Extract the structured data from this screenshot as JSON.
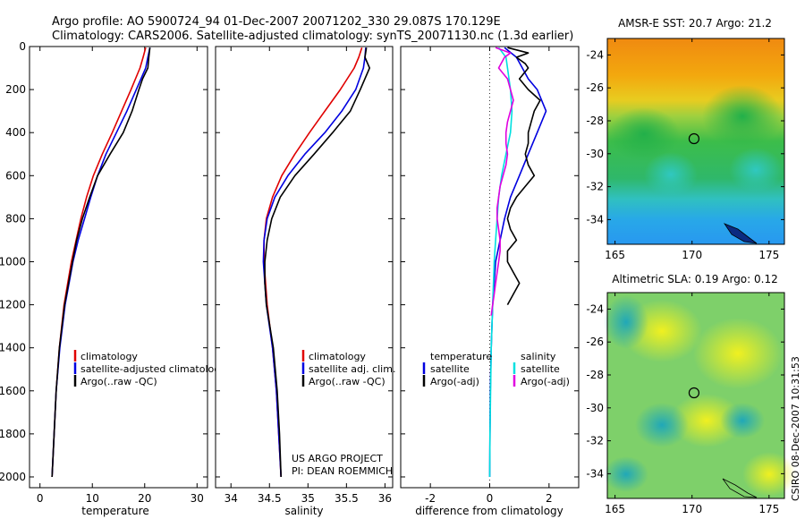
{
  "header": {
    "line1": "Argo profile: AO 5900724_94 01-Dec-2007 20071202_330 29.087S 170.129E",
    "line2": "Climatology: CARS2006. Satellite-adjusted climatology: synTS_20071130.nc (1.3d earlier)"
  },
  "side_label": "CSIRO 08-Dec-2007 10:31:53",
  "credit": {
    "line1": "US ARGO PROJECT",
    "line2": "PI: DEAN ROEMMICH"
  },
  "colors": {
    "climatology": "#e00000",
    "satellite": "#0000e0",
    "argo": "#000000",
    "satellite_salinity": "#00e0e0",
    "argo_salinity": "#e000e0"
  },
  "chart_data": [
    {
      "type": "line",
      "xlabel": "temperature",
      "ylabel": "",
      "xlim": [
        -2,
        32
      ],
      "ylim": [
        2050,
        0
      ],
      "xticks": [
        0,
        10,
        20,
        30
      ],
      "yticks": [
        0,
        200,
        400,
        600,
        800,
        1000,
        1200,
        1400,
        1600,
        1800,
        2000
      ],
      "legend": [
        "climatology",
        "satellite-adjusted climatology",
        "Argo(..raw -QC)"
      ],
      "series": [
        {
          "name": "climatology",
          "color": "#e00000",
          "depth": [
            5,
            50,
            100,
            200,
            300,
            400,
            500,
            600,
            700,
            800,
            900,
            1000,
            1200,
            1400,
            1600,
            1800,
            2000
          ],
          "values": [
            20.2,
            19.7,
            19.1,
            17.4,
            15.6,
            13.8,
            11.9,
            10.2,
            8.9,
            7.8,
            6.9,
            6.0,
            4.6,
            3.7,
            3.1,
            2.7,
            2.3
          ]
        },
        {
          "name": "satellite-adjusted climatology",
          "color": "#0000e0",
          "depth": [
            5,
            50,
            100,
            200,
            300,
            400,
            500,
            600,
            700,
            800,
            900,
            1000,
            1200,
            1400,
            1600,
            1800,
            2000
          ],
          "values": [
            21.0,
            20.6,
            20.2,
            18.4,
            16.6,
            14.6,
            12.6,
            11.0,
            9.7,
            8.5,
            7.3,
            6.3,
            4.8,
            3.8,
            3.1,
            2.7,
            2.3
          ]
        },
        {
          "name": "Argo(..raw -QC)",
          "color": "#000000",
          "depth": [
            5,
            50,
            100,
            150,
            200,
            300,
            400,
            500,
            600,
            700,
            800,
            900,
            1000,
            1200,
            1400,
            1600,
            1800,
            2000
          ],
          "values": [
            21.0,
            20.8,
            20.6,
            19.6,
            18.9,
            17.6,
            15.9,
            13.4,
            11.0,
            9.5,
            8.1,
            7.0,
            6.2,
            4.7,
            3.7,
            3.1,
            2.7,
            2.3
          ]
        }
      ]
    },
    {
      "type": "line",
      "xlabel": "salinity",
      "ylabel": "",
      "xlim": [
        33.8,
        36.1
      ],
      "ylim": [
        2050,
        0
      ],
      "xticks": [
        34,
        34.5,
        35,
        35.5,
        36
      ],
      "yticks": [
        0,
        200,
        400,
        600,
        800,
        1000,
        1200,
        1400,
        1600,
        1800,
        2000
      ],
      "legend": [
        "climatology",
        "satellite adj. clim.",
        "Argo(..raw -QC)"
      ],
      "series": [
        {
          "name": "climatology",
          "color": "#e00000",
          "depth": [
            5,
            50,
            100,
            200,
            300,
            400,
            500,
            600,
            700,
            800,
            900,
            1000,
            1200,
            1400,
            1600,
            1800,
            2000
          ],
          "values": [
            35.7,
            35.66,
            35.6,
            35.42,
            35.22,
            35.02,
            34.83,
            34.66,
            34.54,
            34.46,
            34.43,
            34.43,
            34.47,
            34.54,
            34.59,
            34.62,
            34.65
          ]
        },
        {
          "name": "satellite adj. clim.",
          "color": "#0000e0",
          "depth": [
            5,
            50,
            100,
            200,
            300,
            400,
            500,
            600,
            700,
            800,
            900,
            1000,
            1200,
            1400,
            1600,
            1800,
            2000
          ],
          "values": [
            35.75,
            35.74,
            35.72,
            35.62,
            35.44,
            35.22,
            34.96,
            34.74,
            34.57,
            34.47,
            34.43,
            34.42,
            34.46,
            34.54,
            34.59,
            34.62,
            34.65
          ]
        },
        {
          "name": "Argo(..raw -QC)",
          "color": "#000000",
          "depth": [
            5,
            50,
            100,
            200,
            300,
            400,
            500,
            600,
            700,
            800,
            900,
            1000,
            1100,
            1200,
            1400,
            1600,
            1800,
            2000
          ],
          "values": [
            35.76,
            35.74,
            35.8,
            35.68,
            35.55,
            35.32,
            35.08,
            34.83,
            34.64,
            34.53,
            34.47,
            34.44,
            34.44,
            34.46,
            34.55,
            34.6,
            34.63,
            34.65
          ]
        }
      ]
    },
    {
      "type": "line",
      "xlabel": "difference from climatology",
      "ylabel": "",
      "xlim": [
        -3,
        3
      ],
      "ylim": [
        2050,
        0
      ],
      "xticks": [
        -2,
        0,
        2
      ],
      "yticks": [
        0,
        200,
        400,
        600,
        800,
        1000,
        1200,
        1400,
        1600,
        1800,
        2000
      ],
      "legend_groups": [
        {
          "heading": "temperature",
          "items": [
            "satellite",
            "Argo(-adj)"
          ]
        },
        {
          "heading": "salinity",
          "items": [
            "satellite",
            "Argo(-adj)"
          ]
        }
      ],
      "series": [
        {
          "name": "temperature satellite",
          "color": "#0000e0",
          "depth": [
            5,
            50,
            100,
            150,
            200,
            300,
            400,
            500,
            600,
            700,
            800,
            900,
            1000,
            1200,
            1400,
            1600,
            1800,
            2000
          ],
          "values": [
            0.5,
            0.9,
            1.1,
            1.3,
            1.6,
            1.9,
            1.6,
            1.3,
            1.0,
            0.7,
            0.5,
            0.35,
            0.2,
            0.1,
            0.05,
            0.02,
            0.01,
            0.0
          ]
        },
        {
          "name": "temperature Argo(-adj)",
          "color": "#000000",
          "depth": [
            5,
            30,
            50,
            80,
            100,
            150,
            200,
            250,
            300,
            350,
            400,
            450,
            500,
            550,
            600,
            650,
            700,
            750,
            800,
            850,
            900,
            950,
            1000,
            1050,
            1100,
            1150,
            1200
          ],
          "values": [
            0.6,
            1.3,
            0.9,
            1.2,
            1.3,
            1.0,
            1.3,
            1.7,
            1.5,
            1.4,
            1.3,
            1.3,
            1.2,
            1.3,
            1.5,
            1.2,
            0.9,
            0.7,
            0.6,
            0.7,
            0.9,
            0.6,
            0.6,
            0.8,
            1.0,
            0.8,
            0.6
          ]
        },
        {
          "name": "salinity satellite",
          "color": "#00e0e0",
          "depth": [
            5,
            50,
            100,
            200,
            300,
            400,
            500,
            600,
            700,
            800,
            900,
            1000,
            1200,
            1400,
            1600,
            1800,
            2000
          ],
          "values": [
            0.3,
            0.55,
            0.6,
            0.7,
            0.75,
            0.7,
            0.55,
            0.4,
            0.3,
            0.25,
            0.2,
            0.15,
            0.1,
            0.05,
            0.03,
            0.01,
            0.0
          ]
        },
        {
          "name": "salinity Argo(-adj)",
          "color": "#e000e0",
          "depth": [
            5,
            30,
            50,
            100,
            150,
            200,
            250,
            300,
            350,
            400,
            450,
            500,
            550,
            600,
            650,
            700,
            750,
            800,
            850,
            900,
            950,
            1000,
            1050,
            1100,
            1150,
            1200,
            1250
          ],
          "values": [
            0.2,
            0.7,
            0.5,
            0.3,
            0.6,
            0.7,
            0.8,
            0.7,
            0.6,
            0.55,
            0.55,
            0.6,
            0.55,
            0.45,
            0.35,
            0.3,
            0.25,
            0.25,
            0.3,
            0.35,
            0.35,
            0.3,
            0.25,
            0.2,
            0.15,
            0.1,
            0.05
          ]
        }
      ]
    },
    {
      "type": "heatmap",
      "title": "AMSR-E SST: 20.7 Argo: 21.2",
      "xlim": [
        164.5,
        176
      ],
      "ylim": [
        -35.5,
        -23
      ],
      "xticks": [
        165,
        170,
        175
      ],
      "yticks": [
        -24,
        -26,
        -28,
        -30,
        -32,
        -34
      ],
      "marker": {
        "lon": 170.129,
        "lat": -29.087
      }
    },
    {
      "type": "heatmap",
      "title": "Altimetric SLA: 0.19 Argo: 0.12",
      "xlim": [
        164.5,
        176
      ],
      "ylim": [
        -35.5,
        -23
      ],
      "xticks": [
        165,
        170,
        175
      ],
      "yticks": [
        -24,
        -26,
        -28,
        -30,
        -32,
        -34
      ],
      "marker": {
        "lon": 170.129,
        "lat": -29.087
      }
    }
  ]
}
